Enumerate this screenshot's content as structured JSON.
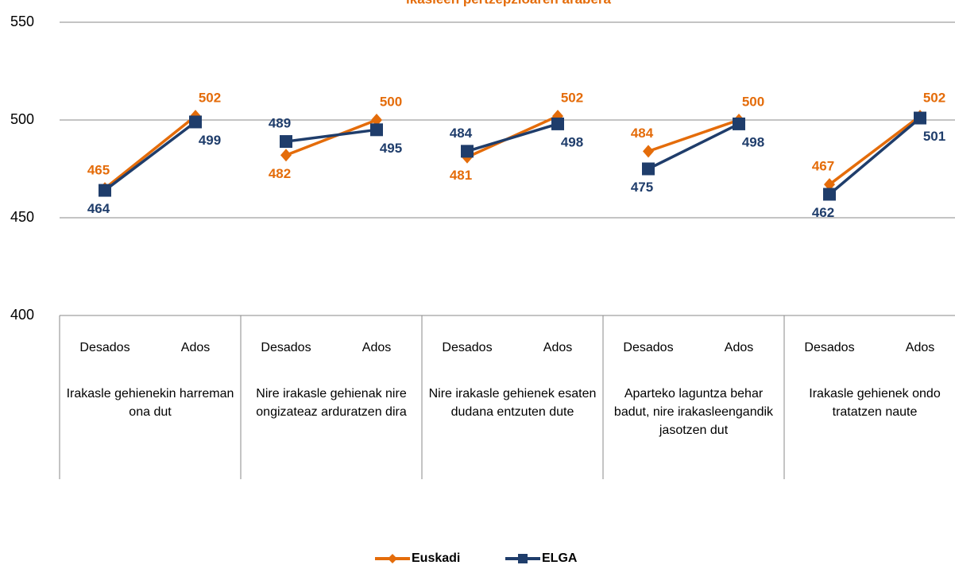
{
  "chart_data": {
    "type": "line",
    "title": "ikasleen pertzepzioaren arabera",
    "categories": [
      "Desados",
      "Ados",
      "Desados",
      "Ados",
      "Desados",
      "Ados",
      "Desados",
      "Ados",
      "Desados",
      "Ados"
    ],
    "groups": [
      "Irakasle gehienekin harreman ona dut",
      "Nire irakasle gehienak nire ongizateaz arduratzen dira",
      "Nire irakasle gehienek esaten dudana entzuten dute",
      "Aparteko laguntza behar badut, nire irakasleengandik jasotzen dut",
      "Irakasle gehienek ondo tratatzen naute"
    ],
    "series": [
      {
        "name": "Euskadi",
        "color": "#e46c0a",
        "marker": "diamond",
        "values": [
          465,
          502,
          482,
          500,
          481,
          502,
          484,
          500,
          467,
          502
        ]
      },
      {
        "name": "ELGA",
        "color": "#1f3d6b",
        "marker": "square",
        "values": [
          464,
          499,
          489,
          495,
          484,
          498,
          475,
          498,
          462,
          501
        ]
      }
    ],
    "ylim": [
      400,
      550
    ],
    "yticks": [
      400,
      450,
      500,
      550
    ],
    "grid": true,
    "legend": "bottom"
  }
}
